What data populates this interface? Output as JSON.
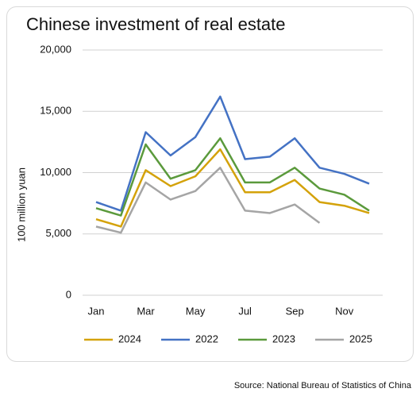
{
  "chart_data": {
    "type": "line",
    "title": "Chinese investment of real estate",
    "y_label": "100 million yuan",
    "source": "Source: National Bureau of Statistics of China",
    "categories": [
      "Jan",
      null,
      "Mar",
      null,
      "May",
      null,
      "Jul",
      null,
      "Sep",
      null,
      "Nov",
      null
    ],
    "series": [
      {
        "name": "2024",
        "color": "#d4a20a",
        "values": [
          6200,
          5600,
          10200,
          8900,
          9700,
          11900,
          8400,
          8400,
          9400,
          7600,
          7300,
          6700
        ]
      },
      {
        "name": "2022",
        "color": "#4472c4",
        "values": [
          7600,
          6900,
          13300,
          11400,
          12900,
          16200,
          11100,
          11300,
          12800,
          10400,
          9900,
          9100
        ]
      },
      {
        "name": "2023",
        "color": "#5b9a3c",
        "values": [
          7100,
          6500,
          12300,
          9500,
          10200,
          12800,
          9200,
          9200,
          10400,
          8700,
          8200,
          6900
        ]
      },
      {
        "name": "2025",
        "color": "#a5a5a5",
        "values": [
          5600,
          5100,
          9200,
          7800,
          8500,
          10400,
          6900,
          6700,
          7400,
          5900,
          null,
          null
        ]
      }
    ],
    "ylim": [
      0,
      20000
    ],
    "yticks": [
      0,
      {
        "value": 5000,
        "label": "5,000"
      },
      {
        "value": 10000,
        "label": "10,000"
      },
      {
        "value": 15000,
        "label": "15,000"
      },
      {
        "value": 20000,
        "label": "20,000"
      }
    ],
    "grid": true,
    "legend": "bottom"
  }
}
